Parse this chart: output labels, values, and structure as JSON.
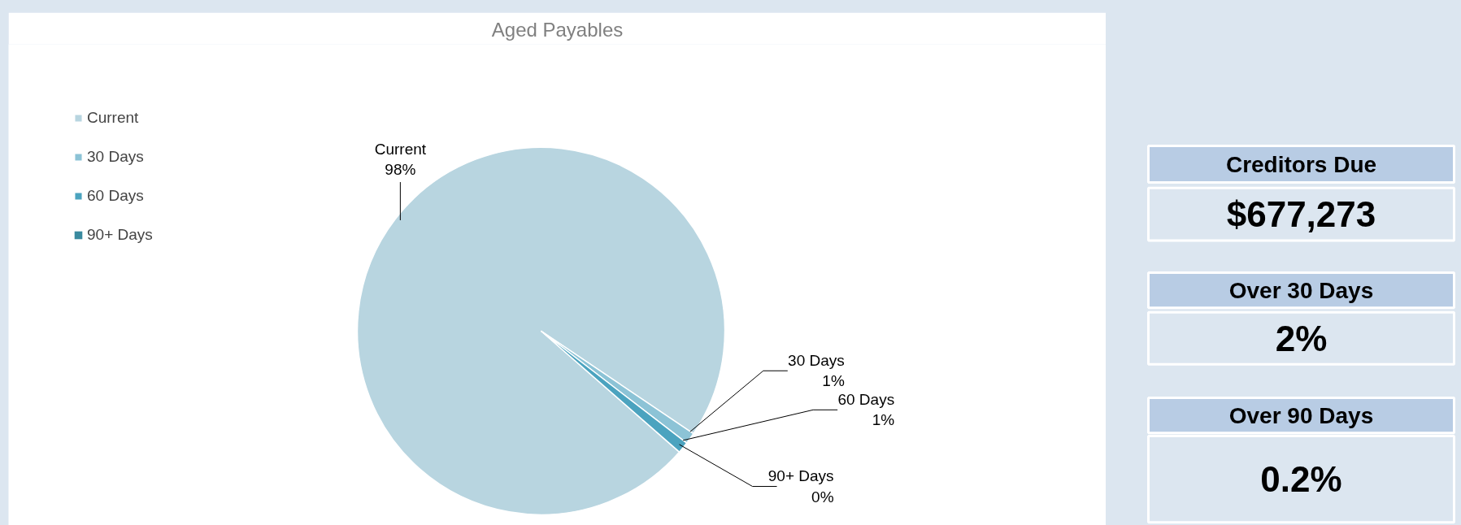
{
  "chart_data": [
    {
      "type": "pie",
      "title": "Aged Payables",
      "categories": [
        "Current",
        "30 Days",
        "60 Days",
        "90+ Days"
      ],
      "values": [
        98,
        1,
        1,
        0
      ],
      "colors": [
        "#b8d5e0",
        "#8cc3d6",
        "#4ba3bf",
        "#3a8a9f"
      ],
      "value_labels": [
        "98%",
        "1%",
        "1%",
        "0%"
      ],
      "legend": "top left"
    },
    {
      "type": "other",
      "annotations": [
        "Creditors Due",
        "$677,273",
        "Over 30 Days",
        "2%",
        "Over 90 Days",
        "0.2%"
      ]
    }
  ]
}
